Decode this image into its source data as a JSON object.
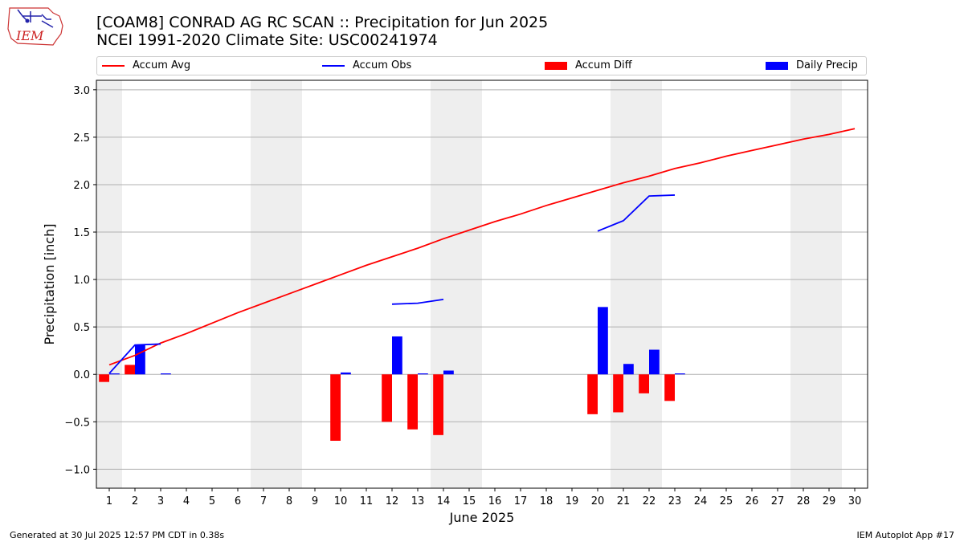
{
  "header": {
    "title_line1": "[COAM8] CONRAD AG RC SCAN :: Precipitation for Jun 2025",
    "title_line2": "NCEI 1991-2020 Climate Site: USC00241974",
    "logo_text": "IEM"
  },
  "footer": {
    "generated": "Generated at 30 Jul 2025 12:57 PM CDT in 0.38s",
    "app": "IEM Autoplot App #17"
  },
  "chart_data": {
    "type": "bar",
    "xlabel": "June 2025",
    "ylabel": "Precipitation [inch]",
    "ylim": [
      -1.2,
      3.1
    ],
    "yticks": [
      -1.0,
      -0.5,
      0.0,
      0.5,
      1.0,
      1.5,
      2.0,
      2.5,
      3.0
    ],
    "ytick_labels": [
      "−1.0",
      "−0.5",
      "0.0",
      "0.5",
      "1.0",
      "1.5",
      "2.0",
      "2.5",
      "3.0"
    ],
    "grid": "horizontal",
    "legend_position": "top",
    "weekend_shading": [
      [
        0.5,
        1.5
      ],
      [
        6.5,
        8.5
      ],
      [
        13.5,
        15.5
      ],
      [
        20.5,
        22.5
      ],
      [
        27.5,
        29.5
      ]
    ],
    "days": [
      1,
      2,
      3,
      4,
      5,
      6,
      7,
      8,
      9,
      10,
      11,
      12,
      13,
      14,
      15,
      16,
      17,
      18,
      19,
      20,
      21,
      22,
      23,
      24,
      25,
      26,
      27,
      28,
      29,
      30
    ],
    "series": [
      {
        "name": "Accum Avg",
        "kind": "line",
        "color": "#ff0000",
        "values": [
          0.1,
          0.2,
          0.33,
          0.43,
          0.54,
          0.65,
          0.75,
          0.85,
          0.95,
          1.05,
          1.15,
          1.24,
          1.33,
          1.43,
          1.52,
          1.61,
          1.69,
          1.78,
          1.86,
          1.94,
          2.02,
          2.09,
          2.17,
          2.23,
          2.3,
          2.36,
          2.42,
          2.48,
          2.53,
          2.59
        ]
      },
      {
        "name": "Accum Obs",
        "kind": "line",
        "color": "#0000ff",
        "values": [
          0.01,
          0.31,
          0.32,
          null,
          null,
          null,
          null,
          null,
          null,
          null,
          null,
          0.74,
          0.75,
          0.79,
          null,
          null,
          null,
          null,
          null,
          1.51,
          1.62,
          1.88,
          1.89,
          null,
          null,
          null,
          null,
          null,
          null,
          null
        ]
      },
      {
        "name": "Accum Diff",
        "kind": "bar",
        "color": "#ff0000",
        "values": [
          -0.08,
          0.1,
          null,
          null,
          null,
          null,
          null,
          null,
          null,
          -0.7,
          null,
          -0.5,
          -0.58,
          -0.64,
          null,
          null,
          null,
          null,
          null,
          -0.42,
          -0.4,
          -0.2,
          -0.28,
          null,
          null,
          null,
          null,
          null,
          null,
          null
        ]
      },
      {
        "name": "Daily Precip",
        "kind": "bar",
        "color": "#0000ff",
        "values": [
          0.01,
          0.31,
          0.01,
          null,
          null,
          null,
          null,
          null,
          null,
          0.02,
          null,
          0.4,
          0.01,
          0.04,
          null,
          null,
          null,
          null,
          null,
          0.71,
          0.11,
          0.26,
          0.01,
          null,
          null,
          null,
          null,
          null,
          null,
          null
        ]
      }
    ]
  }
}
